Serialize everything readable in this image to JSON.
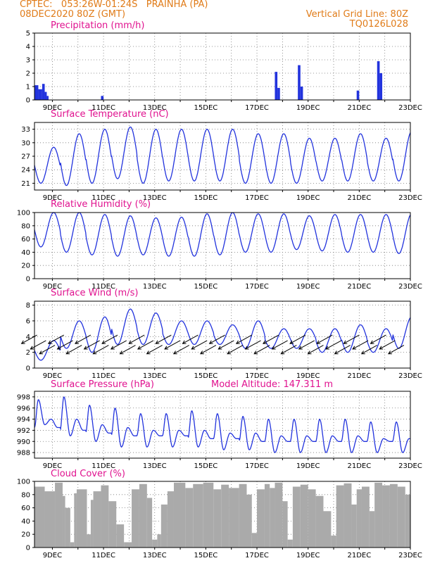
{
  "header": {
    "line1_left": "CPTEC:   053:26W-01:24S   PRAINHA (PA)",
    "line2_left": "08DEC2020 80Z (GMT)",
    "line2_right": "Vertical Grid Line: 80Z",
    "line3_right": "TQ0126L028"
  },
  "colors": {
    "line": "#2233dd",
    "cloud": "#aaaaaa",
    "title": "#e0128f",
    "header": "#e07b18"
  },
  "chart_data": [
    {
      "type": "bar",
      "title": "Precipitation (mm/h)",
      "ylim": [
        0,
        5
      ],
      "yticks": [
        0,
        1,
        2,
        3,
        4,
        5
      ],
      "xticks": [
        "9DEC",
        "11DEC",
        "13DEC",
        "15DEC",
        "17DEC",
        "19DEC",
        "21DEC",
        "23DEC"
      ],
      "xlim": [
        8.3,
        23.0
      ],
      "events": [
        [
          8.3,
          8.45,
          1.1
        ],
        [
          8.45,
          8.6,
          0.8
        ],
        [
          8.6,
          8.7,
          1.2
        ],
        [
          8.7,
          8.78,
          0.6
        ],
        [
          8.78,
          8.85,
          0.3
        ],
        [
          10.9,
          11.0,
          0.3
        ],
        [
          17.7,
          17.8,
          2.1
        ],
        [
          17.8,
          17.9,
          0.9
        ],
        [
          18.6,
          18.7,
          2.6
        ],
        [
          18.7,
          18.8,
          1.0
        ],
        [
          20.9,
          21.0,
          0.7
        ],
        [
          21.7,
          21.8,
          2.9
        ],
        [
          21.8,
          21.9,
          2.0
        ]
      ]
    },
    {
      "type": "line",
      "title": "Surface Temperature (nC)",
      "ylim": [
        19.5,
        34.5
      ],
      "yticks": [
        21,
        24,
        27,
        30,
        33
      ],
      "xticks": [
        "9DEC",
        "11DEC",
        "13DEC",
        "15DEC",
        "17DEC",
        "19DEC",
        "21DEC",
        "23DEC"
      ],
      "xlim": [
        8.3,
        23.0
      ],
      "daily": {
        "start": 8.3,
        "days": 15,
        "max": [
          29,
          32,
          33,
          33.5,
          33,
          33,
          33,
          33,
          32,
          32,
          31,
          31,
          32,
          31,
          32.5
        ],
        "min": [
          21,
          20.5,
          21,
          22,
          21,
          21.5,
          21.5,
          21.5,
          21,
          21,
          21,
          21.5,
          21.5,
          21.5,
          21.5
        ]
      }
    },
    {
      "type": "line",
      "title": "Relative Humidity (%)",
      "ylim": [
        0,
        100
      ],
      "yticks": [
        0,
        20,
        40,
        60,
        80,
        100
      ],
      "xticks": [
        "9DEC",
        "11DEC",
        "13DEC",
        "15DEC",
        "17DEC",
        "19DEC",
        "21DEC",
        "23DEC"
      ],
      "xlim": [
        8.3,
        23.0
      ],
      "daily": {
        "start": 8.3,
        "days": 15,
        "max": [
          100,
          100,
          97,
          95,
          92,
          93,
          98,
          100,
          98,
          98,
          95,
          97,
          97,
          97,
          98
        ],
        "min": [
          48,
          40,
          36,
          34,
          36,
          34,
          34,
          36,
          40,
          40,
          44,
          42,
          40,
          40,
          38
        ]
      }
    },
    {
      "type": "line",
      "title": "Surface Wind (m/s)",
      "ylim": [
        0,
        8.5
      ],
      "yticks": [
        0,
        2,
        4,
        6,
        8
      ],
      "xticks": [
        "9DEC",
        "11DEC",
        "13DEC",
        "15DEC",
        "17DEC",
        "19DEC",
        "21DEC",
        "23DEC"
      ],
      "xlim": [
        8.3,
        23.0
      ],
      "daily": {
        "start": 8.3,
        "days": 15,
        "max": [
          3.5,
          6,
          6.5,
          7.5,
          7,
          6,
          6,
          5.5,
          6,
          5,
          5,
          5,
          5.5,
          5,
          6.5
        ],
        "min": [
          1,
          2.5,
          2,
          3,
          3,
          3,
          3,
          3,
          2.5,
          2.5,
          2.5,
          2,
          2,
          2,
          2.5
        ]
      },
      "vectors": {
        "start": 8.4,
        "step": 0.35,
        "count": 42,
        "dx": -1.0,
        "dy": -0.55
      }
    },
    {
      "type": "line",
      "title": "Surface Pressure (hPa)",
      "annotation": "Model Altitude: 147.311 m",
      "ylim": [
        987,
        999
      ],
      "yticks": [
        988,
        990,
        992,
        994,
        996,
        998
      ],
      "xticks": [
        "9DEC",
        "11DEC",
        "13DEC",
        "15DEC",
        "17DEC",
        "19DEC",
        "21DEC",
        "23DEC"
      ],
      "xlim": [
        8.3,
        23.0
      ],
      "semidiurnal": {
        "start": 8.3,
        "days": 15,
        "high1": [
          997.5,
          998,
          996.5,
          996,
          995,
          995,
          995.5,
          995,
          994.5,
          994,
          994,
          994,
          994,
          993.5,
          993.5
        ],
        "high2": [
          994,
          994,
          993,
          992.5,
          992,
          992,
          992,
          991.5,
          991.5,
          991,
          991,
          991,
          991,
          990.5,
          990.5
        ],
        "low1": [
          993,
          991,
          990,
          989,
          989,
          989,
          989,
          988.5,
          988.5,
          988,
          988,
          988,
          988,
          988,
          988
        ],
        "low2": [
          992.5,
          992,
          991.5,
          991,
          991,
          991,
          990.5,
          990.5,
          990,
          990,
          990,
          990,
          990,
          990,
          990
        ]
      }
    },
    {
      "type": "area",
      "title": "Cloud Cover (%)",
      "ylim": [
        0,
        100
      ],
      "yticks": [
        0,
        20,
        40,
        60,
        80,
        100
      ],
      "xticks": [
        "9DEC",
        "11DEC",
        "13DEC",
        "15DEC",
        "17DEC",
        "19DEC",
        "21DEC",
        "23DEC"
      ],
      "xlim": [
        8.3,
        23.0
      ],
      "segments": [
        [
          8.3,
          8.7,
          92
        ],
        [
          8.7,
          9.1,
          85
        ],
        [
          9.1,
          9.4,
          98
        ],
        [
          9.4,
          9.5,
          78
        ],
        [
          9.5,
          9.7,
          60
        ],
        [
          9.7,
          9.85,
          8
        ],
        [
          9.85,
          9.95,
          82
        ],
        [
          9.95,
          10.35,
          88
        ],
        [
          10.35,
          10.5,
          20
        ],
        [
          10.5,
          10.6,
          72
        ],
        [
          10.6,
          10.9,
          85
        ],
        [
          10.9,
          11.2,
          94
        ],
        [
          11.2,
          11.5,
          70
        ],
        [
          11.5,
          11.8,
          35
        ],
        [
          11.8,
          12.1,
          8
        ],
        [
          12.1,
          12.4,
          88
        ],
        [
          12.4,
          12.7,
          96
        ],
        [
          12.7,
          12.9,
          75
        ],
        [
          12.9,
          13.1,
          12
        ],
        [
          13.1,
          13.25,
          20
        ],
        [
          13.25,
          13.5,
          65
        ],
        [
          13.5,
          13.75,
          85
        ],
        [
          13.75,
          14.2,
          98
        ],
        [
          14.2,
          14.5,
          90
        ],
        [
          14.5,
          14.9,
          96
        ],
        [
          14.9,
          15.3,
          98
        ],
        [
          15.3,
          15.6,
          88
        ],
        [
          15.6,
          15.9,
          95
        ],
        [
          15.9,
          16.3,
          90
        ],
        [
          16.3,
          16.6,
          96
        ],
        [
          16.6,
          16.8,
          80
        ],
        [
          16.8,
          17.0,
          22
        ],
        [
          17.0,
          17.3,
          88
        ],
        [
          17.3,
          17.5,
          96
        ],
        [
          17.5,
          17.7,
          90
        ],
        [
          17.7,
          18.0,
          98
        ],
        [
          18.0,
          18.2,
          70
        ],
        [
          18.2,
          18.4,
          12
        ],
        [
          18.4,
          18.7,
          92
        ],
        [
          18.7,
          19.0,
          95
        ],
        [
          19.0,
          19.3,
          88
        ],
        [
          19.3,
          19.6,
          78
        ],
        [
          19.6,
          19.9,
          55
        ],
        [
          19.9,
          20.1,
          18
        ],
        [
          20.1,
          20.4,
          94
        ],
        [
          20.4,
          20.7,
          97
        ],
        [
          20.7,
          20.9,
          65
        ],
        [
          20.9,
          21.1,
          88
        ],
        [
          21.1,
          21.4,
          92
        ],
        [
          21.4,
          21.6,
          55
        ],
        [
          21.6,
          21.9,
          98
        ],
        [
          21.9,
          22.2,
          94
        ],
        [
          22.2,
          22.5,
          96
        ],
        [
          22.5,
          22.8,
          92
        ],
        [
          22.8,
          23.0,
          80
        ]
      ]
    }
  ]
}
